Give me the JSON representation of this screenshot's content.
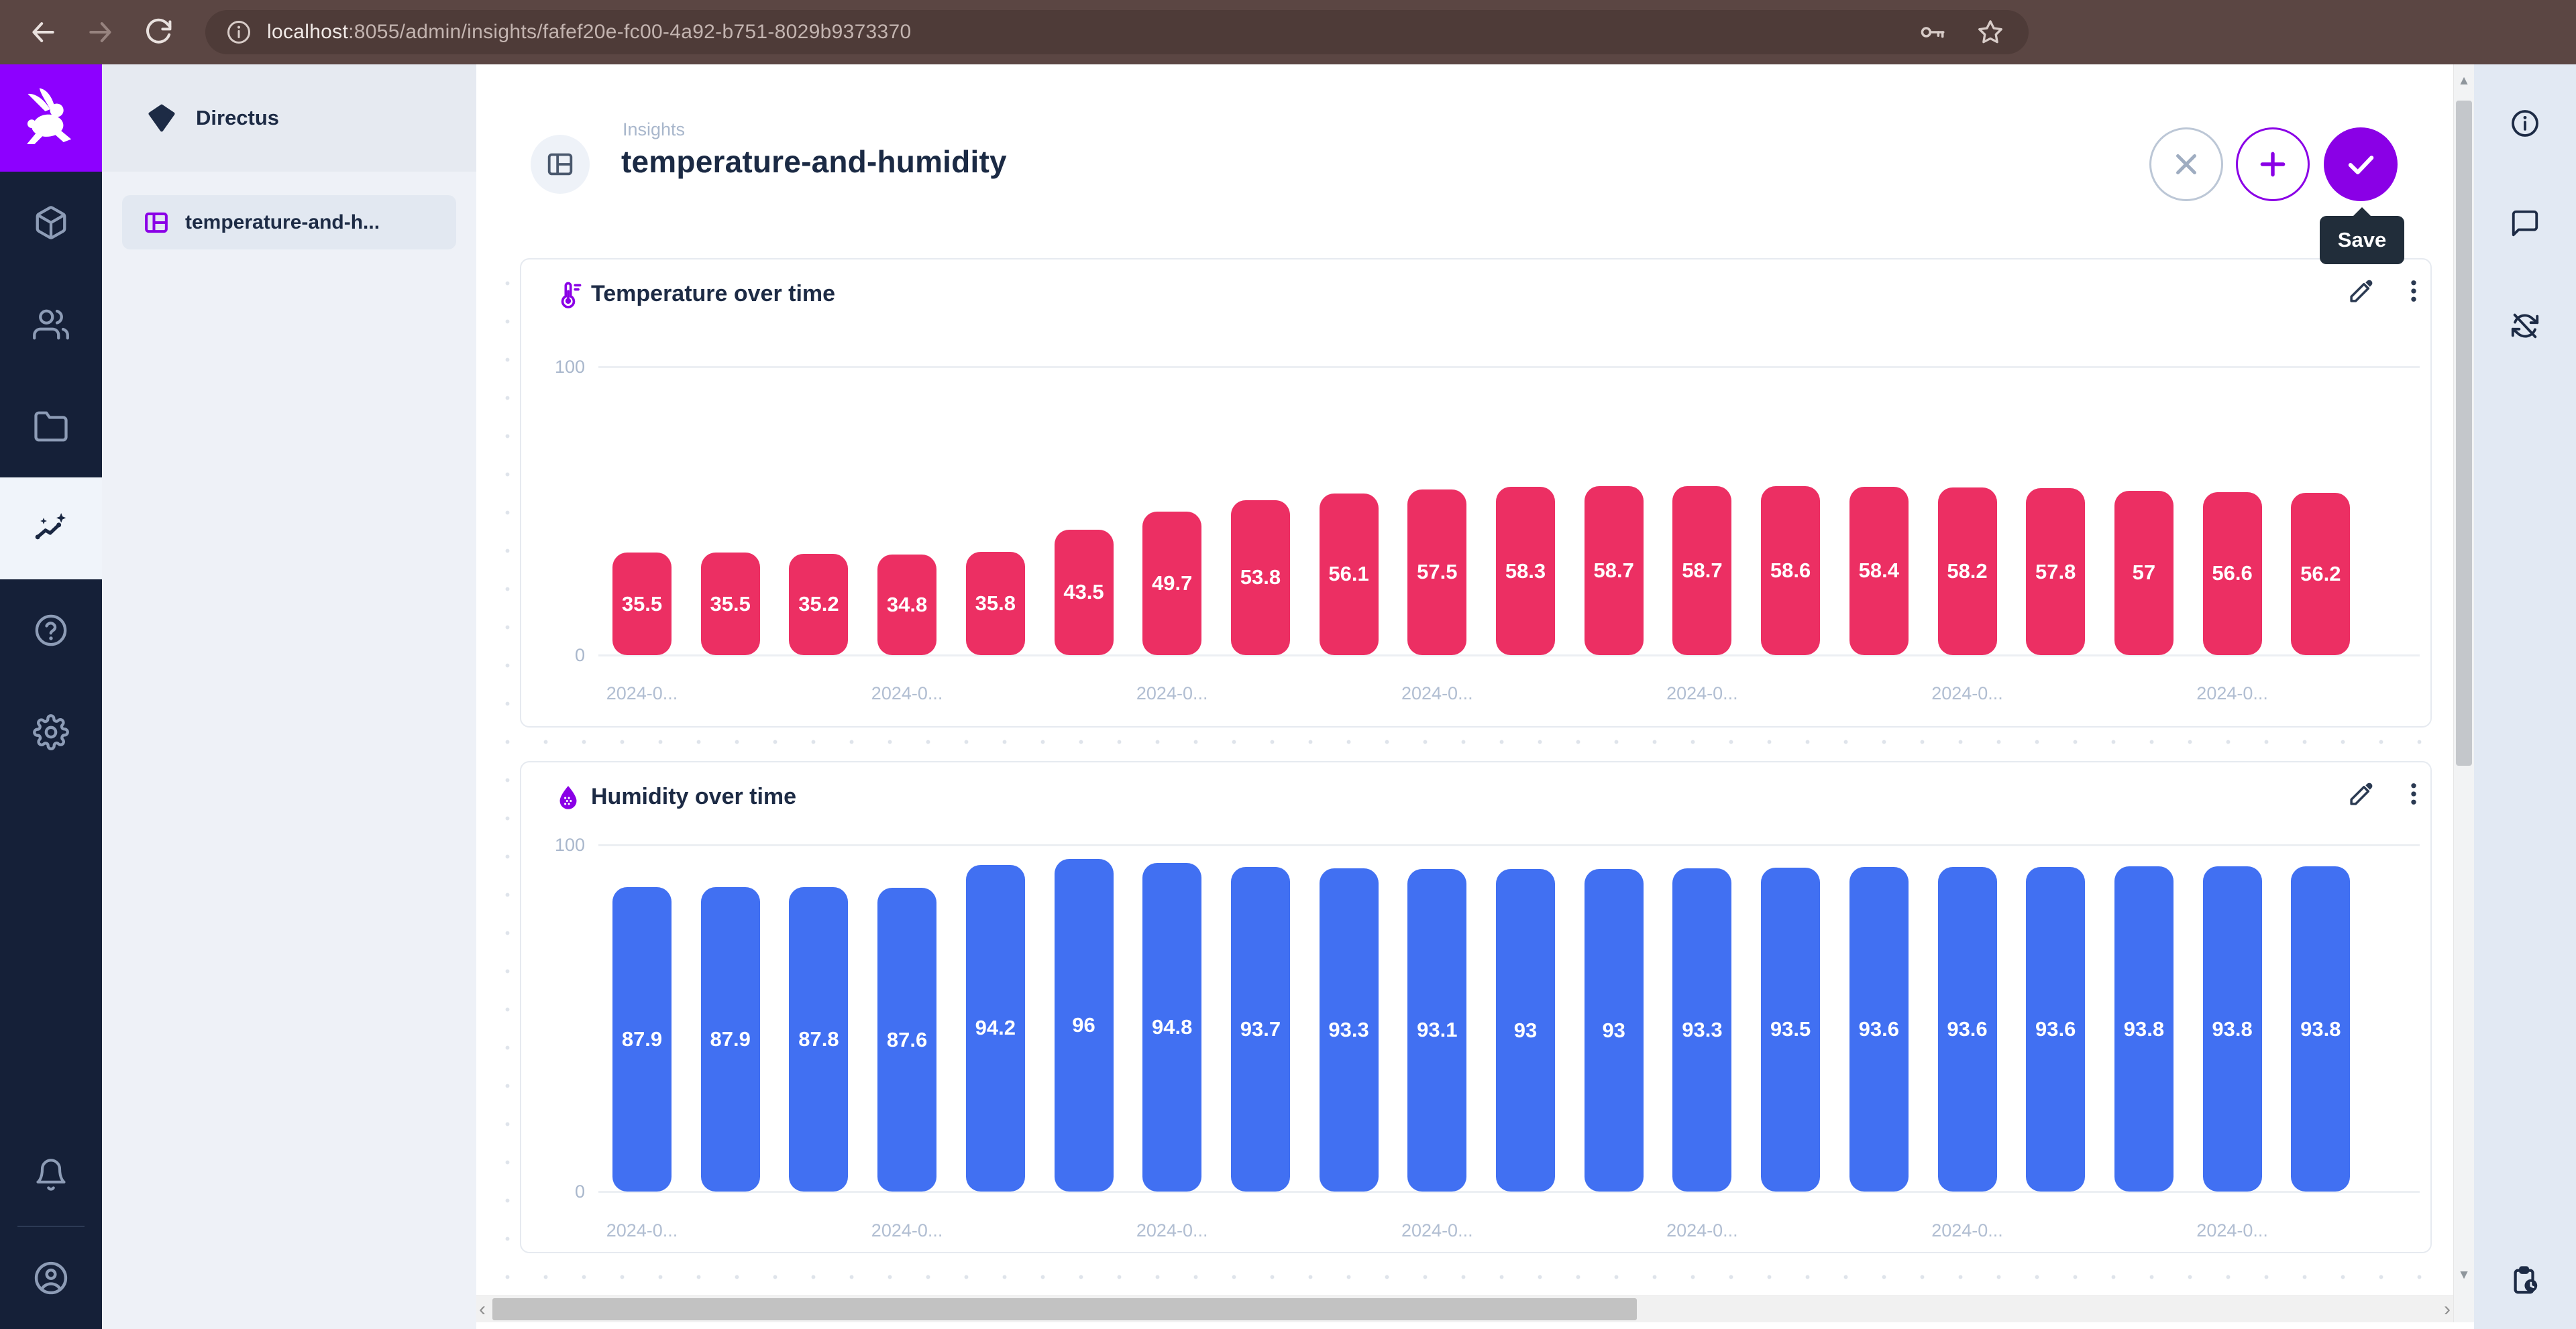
{
  "colors": {
    "accent": "#8A00E6",
    "logo_background": "#8D00FF",
    "temperature_bar": "#EC2F63",
    "humidity_bar": "#4170F2",
    "module_bar_background": "#152038",
    "tooltip_background": "#212D3A"
  },
  "browser": {
    "url_host": "localhost",
    "url_rest": ":8055/admin/insights/fafef20e-fc00-4a92-b751-8029b9373370"
  },
  "sidebar": {
    "project_name": "Directus",
    "items": [
      {
        "label": "temperature-and-h..."
      }
    ]
  },
  "header": {
    "breadcrumb": "Insights",
    "title": "temperature-and-humidity",
    "save_tooltip": "Save"
  },
  "icons": {
    "scroll_up": "▲",
    "scroll_down": "▼",
    "scroll_left": "‹",
    "scroll_right": "›"
  },
  "chart_data": [
    {
      "type": "bar",
      "title": "Temperature over time",
      "color": "#EC2F63",
      "values": [
        35.5,
        35.5,
        35.2,
        34.8,
        35.8,
        43.5,
        49.7,
        53.8,
        56.1,
        57.5,
        58.3,
        58.7,
        58.7,
        58.6,
        58.4,
        58.2,
        57.8,
        57,
        56.6,
        56.2
      ],
      "ylim": [
        0,
        100
      ],
      "yticks": [
        100,
        0
      ],
      "x_tick_text": "2024-0...",
      "x_tick_every": 3,
      "grid": true,
      "legend": false,
      "data_labels": true
    },
    {
      "type": "bar",
      "title": "Humidity over time",
      "color": "#4170F2",
      "values": [
        87.9,
        87.9,
        87.8,
        87.6,
        94.2,
        96,
        94.8,
        93.7,
        93.3,
        93.1,
        93,
        93,
        93.3,
        93.5,
        93.6,
        93.6,
        93.6,
        93.8,
        93.8,
        93.8
      ],
      "ylim": [
        0,
        100
      ],
      "yticks": [
        100,
        0
      ],
      "x_tick_text": "2024-0...",
      "x_tick_every": 3,
      "grid": true,
      "legend": false,
      "data_labels": true
    }
  ]
}
